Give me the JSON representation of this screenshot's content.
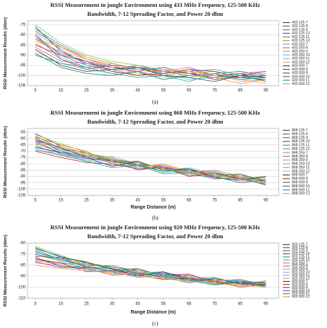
{
  "chart_data": [
    {
      "type": "line",
      "caption": "(a)",
      "title": [
        "RSSI Measurement in jungle Environment using 433 MHz Frequency, 125-500 KHz",
        "Bandwidth, 7-12 Spreading Factor, and Power 20 dbm"
      ],
      "y_label": "RSSI Measurement Results (dbm)",
      "x": [
        5,
        15,
        25,
        35,
        45,
        55,
        65,
        75,
        85,
        95
      ],
      "xlim": [
        2,
        100
      ],
      "xticks": [
        5,
        15,
        25,
        35,
        45,
        55,
        65,
        75,
        85,
        95
      ],
      "ylim": [
        -105,
        -73
      ],
      "yticks": [
        -75,
        -80,
        -85,
        -90,
        -95,
        -100,
        -105
      ],
      "grid": true,
      "series": [
        {
          "name": "433 125 7",
          "color": "#1f3f8f",
          "values": [
            -76,
            -88,
            -94,
            -96,
            -97,
            -98,
            -99,
            -100,
            -101,
            -102
          ]
        },
        {
          "name": "433 125 8",
          "color": "#c0392b",
          "values": [
            -78,
            -86,
            -92,
            -95,
            -96,
            -99,
            -97,
            -100,
            -99,
            -101
          ]
        },
        {
          "name": "433 125 9",
          "color": "#2e8b57",
          "values": [
            -80,
            -90,
            -95,
            -97,
            -95,
            -98,
            -100,
            -99,
            -98,
            -100
          ]
        },
        {
          "name": "433 125 10",
          "color": "#7d3c98",
          "values": [
            -82,
            -89,
            -93,
            -96,
            -98,
            -96,
            -99,
            -101,
            -100,
            -99
          ]
        },
        {
          "name": "433 125 11",
          "color": "#17a2b8",
          "values": [
            -77,
            -85,
            -91,
            -94,
            -97,
            -99,
            -98,
            -97,
            -100,
            -103
          ]
        },
        {
          "name": "433 125 12",
          "color": "#e67e22",
          "values": [
            -84,
            -92,
            -96,
            -95,
            -99,
            -100,
            -98,
            -102,
            -101,
            -100
          ]
        },
        {
          "name": "433 250 7",
          "color": "#5dade2",
          "values": [
            -79,
            -87,
            -95,
            -98,
            -96,
            -97,
            -101,
            -99,
            -102,
            -101
          ]
        },
        {
          "name": "433 250 8",
          "color": "#d35fa0",
          "values": [
            -86,
            -93,
            -94,
            -97,
            -100,
            -98,
            -96,
            -100,
            -99,
            -98
          ]
        },
        {
          "name": "433 250 9",
          "color": "#8bc34a",
          "values": [
            -75,
            -84,
            -90,
            -93,
            -95,
            -97,
            -99,
            -98,
            -101,
            -100
          ]
        },
        {
          "name": "433 250 10",
          "color": "#b39ddb",
          "values": [
            -88,
            -94,
            -97,
            -99,
            -98,
            -101,
            -100,
            -99,
            -103,
            -102
          ]
        },
        {
          "name": "433 250 11",
          "color": "#4dd0e1",
          "values": [
            -81,
            -91,
            -96,
            -94,
            -97,
            -99,
            -102,
            -101,
            -100,
            -99
          ]
        },
        {
          "name": "433 250 12",
          "color": "#f4a460",
          "values": [
            -83,
            -88,
            -92,
            -96,
            -99,
            -97,
            -98,
            -100,
            -102,
            -104
          ]
        },
        {
          "name": "433 500 7",
          "color": "#2c3e50",
          "values": [
            -87,
            -95,
            -98,
            -97,
            -96,
            -100,
            -101,
            -103,
            -100,
            -101
          ]
        },
        {
          "name": "433 500 8",
          "color": "#a93226",
          "values": [
            -85,
            -90,
            -93,
            -98,
            -100,
            -99,
            -97,
            -98,
            -101,
            -100
          ]
        },
        {
          "name": "433 500 9",
          "color": "#1e8449",
          "values": [
            -89,
            -96,
            -99,
            -100,
            -98,
            -102,
            -100,
            -101,
            -99,
            -103
          ]
        },
        {
          "name": "433 500 10",
          "color": "#8e44ad",
          "values": [
            -80,
            -92,
            -97,
            -95,
            -96,
            -98,
            -99,
            -102,
            -100,
            -98
          ]
        },
        {
          "name": "433 500 11",
          "color": "#16a085",
          "values": [
            -90,
            -94,
            -96,
            -99,
            -101,
            -100,
            -103,
            -99,
            -102,
            -101
          ]
        },
        {
          "name": "433 500 12",
          "color": "#f39c12",
          "values": [
            -82,
            -86,
            -91,
            -94,
            -97,
            -98,
            -100,
            -101,
            -104,
            -102
          ]
        }
      ]
    },
    {
      "type": "line",
      "caption": "(b)",
      "title": [
        "RSSI Measurement in jungle Environment using 868 MHz Frequency, 125-500 KHz",
        "Bandwidth, 7-12 Spreading Factor, and Power 20 dbm"
      ],
      "y_label": "RSSI Measurement Results (dbm)",
      "x_label": "Range Distance (m)",
      "x": [
        5,
        15,
        25,
        35,
        45,
        55,
        65,
        75,
        85,
        95
      ],
      "xlim": [
        2,
        100
      ],
      "xticks": [
        5,
        15,
        25,
        35,
        45,
        55,
        65,
        75,
        85,
        95
      ],
      "ylim": [
        -105,
        -52
      ],
      "yticks": [
        -55,
        -60,
        -65,
        -70,
        -75,
        -80,
        -85,
        -90,
        -95,
        -100,
        -105
      ],
      "grid": true,
      "series": [
        {
          "name": "868 125 7",
          "color": "#1f3f8f",
          "values": [
            -56,
            -66,
            -72,
            -76,
            -80,
            -83,
            -86,
            -88,
            -91,
            -93
          ]
        },
        {
          "name": "868 125 8",
          "color": "#c0392b",
          "values": [
            -58,
            -68,
            -71,
            -78,
            -79,
            -84,
            -85,
            -90,
            -89,
            -94
          ]
        },
        {
          "name": "868 125 9",
          "color": "#2e8b57",
          "values": [
            -60,
            -70,
            -74,
            -77,
            -82,
            -81,
            -87,
            -86,
            -92,
            -90
          ]
        },
        {
          "name": "868 125 10",
          "color": "#7d3c98",
          "values": [
            -62,
            -67,
            -75,
            -79,
            -78,
            -85,
            -84,
            -89,
            -90,
            -95
          ]
        },
        {
          "name": "868 125 11",
          "color": "#17a2b8",
          "values": [
            -64,
            -71,
            -73,
            -76,
            -81,
            -82,
            -88,
            -87,
            -93,
            -92
          ]
        },
        {
          "name": "868 125 12",
          "color": "#e67e22",
          "values": [
            -59,
            -65,
            -70,
            -80,
            -83,
            -80,
            -86,
            -91,
            -88,
            -96
          ]
        },
        {
          "name": "868 250 7",
          "color": "#5dade2",
          "values": [
            -66,
            -72,
            -76,
            -78,
            -80,
            -86,
            -83,
            -88,
            -92,
            -91
          ]
        },
        {
          "name": "868 250 8",
          "color": "#d35fa0",
          "values": [
            -61,
            -69,
            -72,
            -75,
            -84,
            -82,
            -87,
            -85,
            -90,
            -94
          ]
        },
        {
          "name": "868 250 9",
          "color": "#8bc34a",
          "values": [
            -57,
            -64,
            -71,
            -77,
            -79,
            -83,
            -89,
            -90,
            -91,
            -93
          ]
        },
        {
          "name": "868 250 10",
          "color": "#b39ddb",
          "values": [
            -68,
            -73,
            -77,
            -81,
            -82,
            -84,
            -85,
            -92,
            -89,
            -95
          ]
        },
        {
          "name": "868 250 11",
          "color": "#4dd0e1",
          "values": [
            -63,
            -70,
            -78,
            -74,
            -80,
            -87,
            -86,
            -88,
            -94,
            -92
          ]
        },
        {
          "name": "868 250 12",
          "color": "#f4a460",
          "values": [
            -65,
            -74,
            -73,
            -79,
            -83,
            -81,
            -88,
            -89,
            -90,
            -97
          ]
        },
        {
          "name": "868 500 7",
          "color": "#2c3e50",
          "values": [
            -67,
            -71,
            -75,
            -82,
            -78,
            -85,
            -84,
            -91,
            -93,
            -90
          ]
        },
        {
          "name": "868 500 8",
          "color": "#a93226",
          "values": [
            -70,
            -75,
            -79,
            -80,
            -84,
            -83,
            -90,
            -87,
            -92,
            -96
          ]
        },
        {
          "name": "868 500 9",
          "color": "#1e8449",
          "values": [
            -60,
            -68,
            -74,
            -78,
            -81,
            -86,
            -85,
            -89,
            -88,
            -94
          ]
        },
        {
          "name": "868 500 10",
          "color": "#8e44ad",
          "values": [
            -62,
            -72,
            -76,
            -77,
            -85,
            -82,
            -89,
            -90,
            -95,
            -93
          ]
        },
        {
          "name": "868 500 11",
          "color": "#16a085",
          "values": [
            -69,
            -73,
            -78,
            -83,
            -81,
            -88,
            -87,
            -92,
            -91,
            -97
          ]
        },
        {
          "name": "868 500 12",
          "color": "#f39c12",
          "values": [
            -64,
            -66,
            -72,
            -76,
            -79,
            -84,
            -86,
            -88,
            -93,
            -91
          ]
        }
      ]
    },
    {
      "type": "line",
      "caption": "(c)",
      "title": [
        "RSSI Measurement in jungle Environment using 920 MHz Frequency, 125-500 KHz",
        "Bandwidth, 7-12 Spreading Factor, and Power 20 dbm"
      ],
      "y_label": "RSSI Measurement Results (dbm)",
      "x_label": "Range Distance (m)",
      "x": [
        5,
        15,
        25,
        35,
        45,
        55,
        65,
        75,
        85,
        95
      ],
      "xlim": [
        2,
        100
      ],
      "xticks": [
        5,
        15,
        25,
        35,
        45,
        55,
        65,
        75,
        85,
        95
      ],
      "ylim": [
        -110,
        -60
      ],
      "yticks": [
        -60,
        -70,
        -80,
        -90,
        -100,
        -110
      ],
      "grid": true,
      "series": [
        {
          "name": "920 125 7",
          "color": "#1f3f8f",
          "values": [
            -65,
            -72,
            -78,
            -82,
            -85,
            -88,
            -91,
            -93,
            -95,
            -96
          ]
        },
        {
          "name": "920 125 8",
          "color": "#c0392b",
          "values": [
            -68,
            -74,
            -77,
            -84,
            -83,
            -90,
            -89,
            -94,
            -93,
            -98
          ]
        },
        {
          "name": "920 125 9",
          "color": "#2e8b57",
          "values": [
            -70,
            -76,
            -80,
            -81,
            -87,
            -86,
            -92,
            -91,
            -97,
            -95
          ]
        },
        {
          "name": "920 125 10",
          "color": "#7d3c98",
          "values": [
            -72,
            -73,
            -82,
            -85,
            -84,
            -89,
            -88,
            -96,
            -94,
            -99
          ]
        },
        {
          "name": "920 125 11",
          "color": "#17a2b8",
          "values": [
            -66,
            -75,
            -79,
            -83,
            -88,
            -87,
            -93,
            -92,
            -96,
            -97
          ]
        },
        {
          "name": "920 125 12",
          "color": "#e67e22",
          "values": [
            -74,
            -78,
            -81,
            -80,
            -86,
            -91,
            -90,
            -95,
            -98,
            -94
          ]
        },
        {
          "name": "920 250 7",
          "color": "#5dade2",
          "values": [
            -67,
            -77,
            -83,
            -86,
            -85,
            -88,
            -94,
            -93,
            -95,
            -100
          ]
        },
        {
          "name": "920 250 8",
          "color": "#d35fa0",
          "values": [
            -76,
            -79,
            -78,
            -84,
            -89,
            -87,
            -90,
            -97,
            -96,
            -95
          ]
        },
        {
          "name": "920 250 9",
          "color": "#8bc34a",
          "values": [
            -63,
            -71,
            -80,
            -82,
            -84,
            -90,
            -92,
            -91,
            -98,
            -96
          ]
        },
        {
          "name": "920 250 10",
          "color": "#b39ddb",
          "values": [
            -78,
            -80,
            -84,
            -87,
            -86,
            -92,
            -91,
            -94,
            -97,
            -99
          ]
        },
        {
          "name": "920 250 11",
          "color": "#4dd0e1",
          "values": [
            -69,
            -74,
            -85,
            -81,
            -88,
            -89,
            -95,
            -93,
            -94,
            -97
          ]
        },
        {
          "name": "920 250 12",
          "color": "#f4a460",
          "values": [
            -71,
            -76,
            -79,
            -88,
            -87,
            -91,
            -90,
            -96,
            -99,
            -95
          ]
        },
        {
          "name": "920 500 7",
          "color": "#2c3e50",
          "values": [
            -73,
            -81,
            -82,
            -83,
            -90,
            -86,
            -93,
            -95,
            -96,
            -98
          ]
        },
        {
          "name": "920 500 8",
          "color": "#a93226",
          "values": [
            -75,
            -78,
            -86,
            -85,
            -89,
            -93,
            -92,
            -94,
            -100,
            -97
          ]
        },
        {
          "name": "920 500 9",
          "color": "#1e8449",
          "values": [
            -64,
            -73,
            -77,
            -84,
            -87,
            -90,
            -94,
            -98,
            -95,
            -96
          ]
        },
        {
          "name": "920 500 10",
          "color": "#8e44ad",
          "values": [
            -77,
            -82,
            -83,
            -89,
            -88,
            -91,
            -96,
            -92,
            -97,
            -99
          ]
        },
        {
          "name": "920 500 11",
          "color": "#16a085",
          "values": [
            -70,
            -75,
            -81,
            -86,
            -91,
            -89,
            -93,
            -97,
            -95,
            -98
          ]
        },
        {
          "name": "920 500 12",
          "color": "#f39c12",
          "values": [
            -80,
            -83,
            -85,
            -87,
            -90,
            -92,
            -95,
            -94,
            -98,
            -100
          ]
        }
      ]
    }
  ]
}
